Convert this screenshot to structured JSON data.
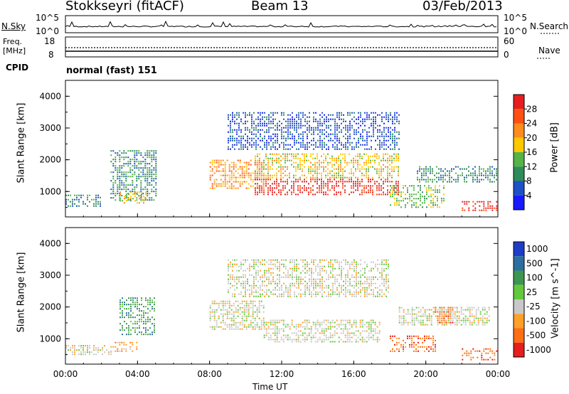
{
  "header": {
    "station": "Stokkseyri (fitACF)",
    "beam": "Beam 13",
    "date": "03/Feb/2013"
  },
  "nsky_panel": {
    "left_label": "N.Sky",
    "right_label": "N.Search",
    "left_ticks": [
      "10^5",
      "10^0"
    ],
    "right_ticks": [
      "10^5",
      "10^0"
    ]
  },
  "freq_panel": {
    "left_label_line1": "Freq.",
    "left_label_line2": "[MHz]",
    "right_label": "Nave",
    "left_ticks": [
      "18",
      "8"
    ],
    "right_ticks": [
      "60",
      "0"
    ]
  },
  "cpid_panel": {
    "label": "CPID",
    "mode": "normal (fast) 151"
  },
  "chart_data": [
    {
      "type": "heatmap",
      "title": "",
      "xlabel": "",
      "ylabel": "Slant Range [km]",
      "y_ticks": [
        "1000",
        "2000",
        "3000",
        "4000"
      ],
      "ylim": [
        200,
        4500
      ],
      "colorbar_label": "Power [dB]",
      "colorbar_ticks": [
        "4",
        "8",
        "12",
        "16",
        "20",
        "24",
        "28"
      ],
      "colorbar_range": [
        0,
        32
      ],
      "colors": [
        "#1a1aff",
        "#1e50c8",
        "#2d8c5a",
        "#55b446",
        "#ffc800",
        "#ff8c1e",
        "#ff5014",
        "#e61e1e"
      ],
      "regions": [
        {
          "t0": 0.0,
          "t1": 2.0,
          "r0": 500,
          "r1": 900,
          "level": 2
        },
        {
          "t0": 2.5,
          "t1": 5.0,
          "r0": 700,
          "r1": 2300,
          "level": 2
        },
        {
          "t0": 3.0,
          "t1": 4.5,
          "r0": 600,
          "r1": 1000,
          "level": 4
        },
        {
          "t0": 8.0,
          "t1": 11.0,
          "r0": 1100,
          "r1": 2000,
          "level": 5
        },
        {
          "t0": 10.5,
          "t1": 18.5,
          "r0": 900,
          "r1": 1400,
          "level": 7
        },
        {
          "t0": 10.5,
          "t1": 18.5,
          "r0": 1400,
          "r1": 2200,
          "level": 4
        },
        {
          "t0": 9.0,
          "t1": 18.5,
          "r0": 2300,
          "r1": 3500,
          "level": 1
        },
        {
          "t0": 18.0,
          "t1": 21.0,
          "r0": 500,
          "r1": 1200,
          "level": 3
        },
        {
          "t0": 19.5,
          "t1": 24.0,
          "r0": 1300,
          "r1": 1800,
          "level": 2
        },
        {
          "t0": 22.0,
          "t1": 24.0,
          "r0": 400,
          "r1": 700,
          "level": 7
        }
      ]
    },
    {
      "type": "heatmap",
      "title": "",
      "xlabel": "Time UT",
      "ylabel": "Slant Range [km]",
      "x_ticks": [
        "00:00",
        "04:00",
        "08:00",
        "12:00",
        "16:00",
        "20:00",
        "00:00"
      ],
      "xlim": [
        0,
        24
      ],
      "y_ticks": [
        "1000",
        "2000",
        "3000",
        "4000"
      ],
      "ylim": [
        200,
        4500
      ],
      "colorbar_label": "Velocity [m s^-1]",
      "colorbar_ticks": [
        "1000",
        "500",
        "100",
        "25",
        "-25",
        "-100",
        "-500",
        "-1000"
      ],
      "colors": [
        "#1e3cc8",
        "#2d6ea0",
        "#3c9650",
        "#64c83c",
        "#c8c8c8",
        "#ffa028",
        "#ff6e14",
        "#e61e1e"
      ],
      "regions": [
        {
          "t0": 0.0,
          "t1": 2.5,
          "r0": 500,
          "r1": 800,
          "level": 4
        },
        {
          "t0": 2.5,
          "t1": 4.0,
          "r0": 600,
          "r1": 900,
          "level": 5
        },
        {
          "t0": 3.0,
          "t1": 5.0,
          "r0": 1100,
          "r1": 2300,
          "level": 2
        },
        {
          "t0": 8.0,
          "t1": 11.0,
          "r0": 1300,
          "r1": 2200,
          "level": 4
        },
        {
          "t0": 11.0,
          "t1": 17.5,
          "r0": 900,
          "r1": 1600,
          "level": 4
        },
        {
          "t0": 9.0,
          "t1": 18.0,
          "r0": 2300,
          "r1": 3500,
          "level": 4
        },
        {
          "t0": 18.0,
          "t1": 20.5,
          "r0": 600,
          "r1": 1100,
          "level": 6
        },
        {
          "t0": 18.5,
          "t1": 23.5,
          "r0": 1400,
          "r1": 2000,
          "level": 4
        },
        {
          "t0": 20.5,
          "t1": 21.5,
          "r0": 1500,
          "r1": 2000,
          "level": 6
        },
        {
          "t0": 22.0,
          "t1": 24.0,
          "r0": 300,
          "r1": 700,
          "level": 6
        }
      ]
    }
  ]
}
